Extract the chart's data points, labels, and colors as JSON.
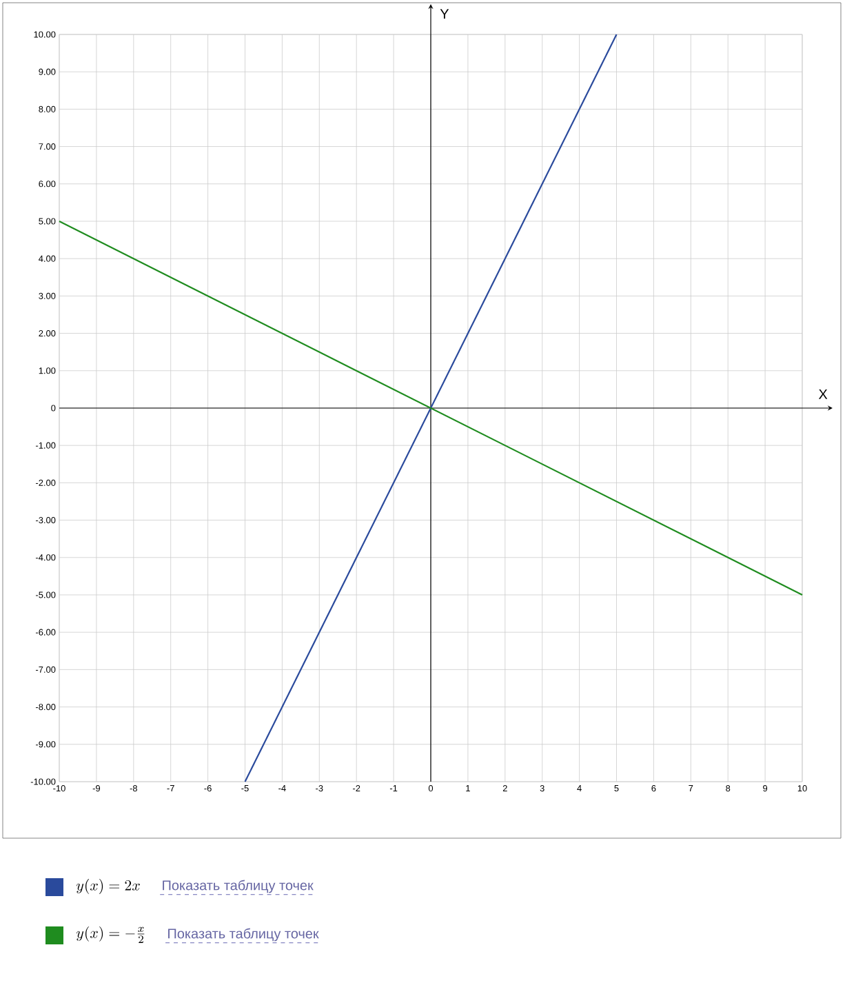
{
  "chart_data": {
    "type": "line",
    "xlabel": "X",
    "ylabel": "Y",
    "xlim": [
      -10,
      10
    ],
    "ylim": [
      -10,
      10
    ],
    "xticks": [
      -10,
      -9,
      -8,
      -7,
      -6,
      -5,
      -4,
      -3,
      -2,
      -1,
      0,
      1,
      2,
      3,
      4,
      5,
      6,
      7,
      8,
      9,
      10
    ],
    "yticks": [
      {
        "value": -10,
        "label": "-10.00"
      },
      {
        "value": -9,
        "label": "-9.00"
      },
      {
        "value": -8,
        "label": "-8.00"
      },
      {
        "value": -7,
        "label": "-7.00"
      },
      {
        "value": -6,
        "label": "-6.00"
      },
      {
        "value": -5,
        "label": "-5.00"
      },
      {
        "value": -4,
        "label": "-4.00"
      },
      {
        "value": -3,
        "label": "-3.00"
      },
      {
        "value": -2,
        "label": "-2.00"
      },
      {
        "value": -1,
        "label": "-1.00"
      },
      0,
      {
        "value": 1,
        "label": "1.00"
      },
      {
        "value": 2,
        "label": "2.00"
      },
      {
        "value": 3,
        "label": "3.00"
      },
      {
        "value": 4,
        "label": "4.00"
      },
      {
        "value": 5,
        "label": "5.00"
      },
      {
        "value": 6,
        "label": "6.00"
      },
      {
        "value": 7,
        "label": "7.00"
      },
      {
        "value": 8,
        "label": "8.00"
      },
      {
        "value": 9,
        "label": "9.00"
      },
      {
        "value": 10,
        "label": "10.00"
      }
    ],
    "series": [
      {
        "name": "y(x) = 2x",
        "color": "#2a4a9c",
        "x": [
          -5,
          5
        ],
        "values": [
          -10,
          10
        ]
      },
      {
        "name": "y(x) = -\\frac{x}{2}",
        "color": "#1f8c1f",
        "x": [
          -10,
          10
        ],
        "values": [
          5,
          -5
        ]
      }
    ],
    "annotations": [
      "Показать таблицу точек",
      "Показать таблицу точек"
    ],
    "grid": true,
    "legend": "bottom",
    "marker": "none",
    "line_style": "solid"
  }
}
